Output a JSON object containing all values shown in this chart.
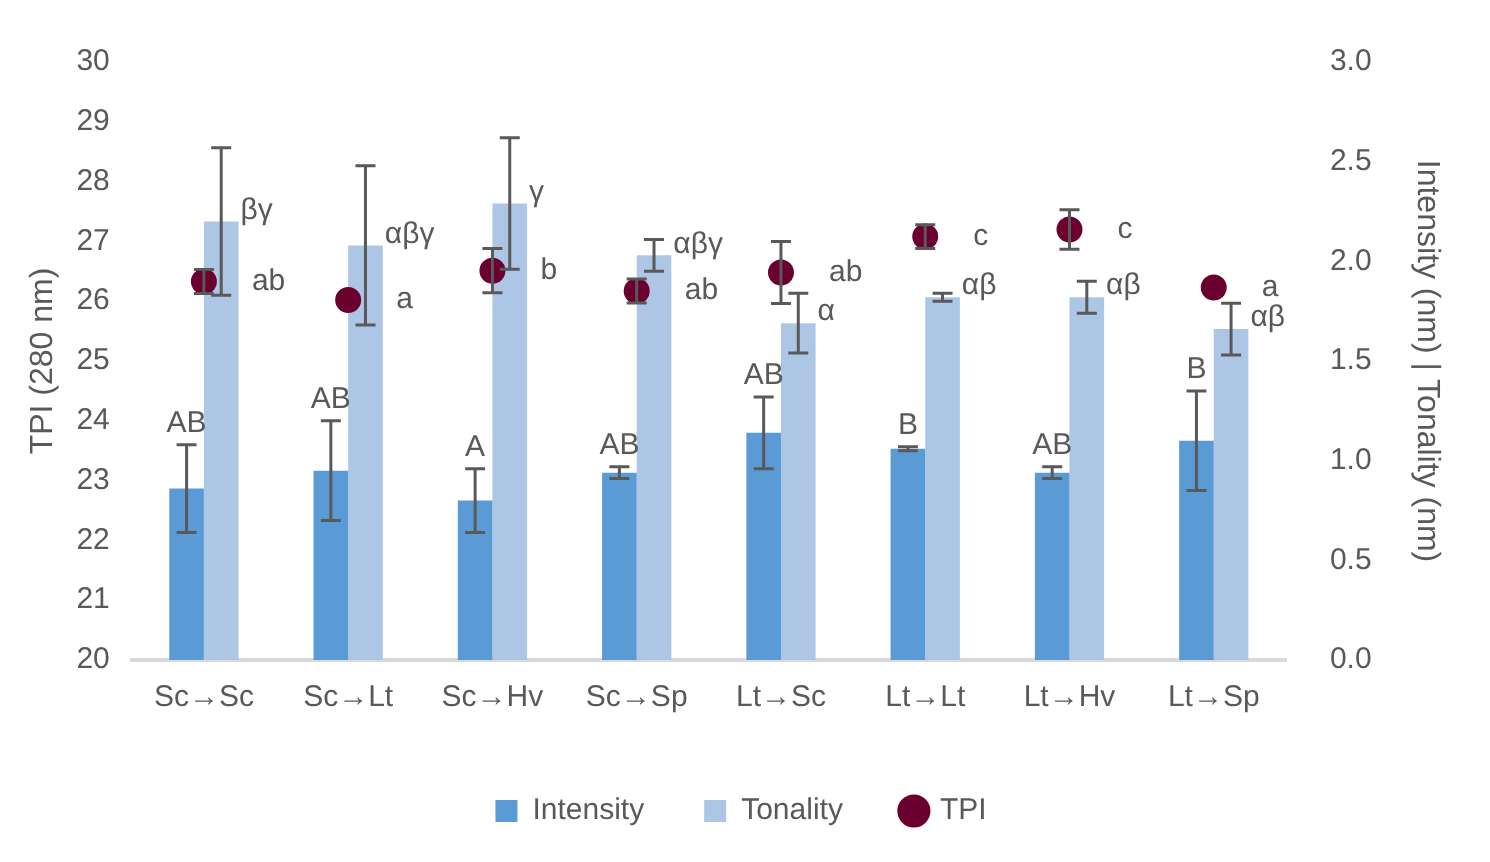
{
  "chart_data": {
    "type": "bar",
    "categories": [
      "Sc→Sc",
      "Sc→Lt",
      "Sc→Hv",
      "Sc→Sp",
      "Lt→Sc",
      "Lt→Lt",
      "Lt→Hv",
      "Lt→Sp"
    ],
    "ylabel": "TPI (280 nm)",
    "y2label": "Intensity (nm) | Tonality (nm)",
    "ylim": [
      20,
      30
    ],
    "yticks": [
      20,
      21,
      22,
      23,
      24,
      25,
      26,
      27,
      28,
      29,
      30
    ],
    "y2lim": [
      0,
      3
    ],
    "y2ticks": [
      {
        "value": 0,
        "label": "0.0"
      },
      {
        "value": 0.5,
        "label": "0.5"
      },
      {
        "value": 1,
        "label": "1.0"
      },
      {
        "value": 1.5,
        "label": "1.5"
      },
      {
        "value": 2,
        "label": "2.0"
      },
      {
        "value": 2.5,
        "label": "2.5"
      },
      {
        "value": 3,
        "label": "3.0"
      }
    ],
    "grid": false,
    "legend": "bottom",
    "series": [
      {
        "name": "Intensity",
        "type": "bar",
        "axis": "y2",
        "color": "#5b9bd5",
        "values": [
          0.86,
          0.95,
          0.8,
          0.94,
          1.14,
          1.06,
          0.94,
          1.1
        ],
        "errors": [
          0.22,
          0.25,
          0.16,
          0.03,
          0.18,
          0.01,
          0.03,
          0.25
        ],
        "value_labels": [
          "AB",
          "AB",
          "A",
          "AB",
          "AB",
          "B",
          "AB",
          "B"
        ]
      },
      {
        "name": "Tonality",
        "type": "bar",
        "axis": "y2",
        "color": "#adc6e6",
        "values": [
          2.2,
          2.08,
          2.29,
          2.03,
          1.69,
          1.82,
          1.82,
          1.66
        ],
        "errors": [
          0.37,
          0.4,
          0.33,
          0.08,
          0.15,
          0.02,
          0.08,
          0.13
        ],
        "value_labels": [
          "βγ",
          "αβγ",
          "γ",
          "αβγ",
          "α",
          "αβ",
          "αβ",
          "αβ"
        ]
      },
      {
        "name": "TPI",
        "type": "scatter",
        "axis": "y",
        "color": "#6b0030",
        "marker": "circle",
        "values": [
          26.33,
          26.02,
          26.51,
          26.17,
          26.48,
          27.08,
          27.2,
          26.23
        ],
        "errors": [
          0.2,
          null,
          0.37,
          0.2,
          0.52,
          0.2,
          0.33,
          null
        ],
        "value_labels": [
          "ab",
          "a",
          "b",
          "ab",
          "ab",
          "c",
          "c",
          "a"
        ]
      }
    ]
  }
}
